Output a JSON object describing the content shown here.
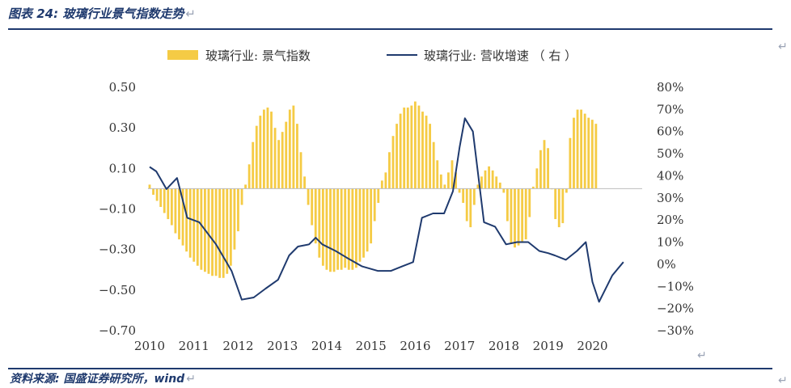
{
  "figure": {
    "title": "图表 24:  玻璃行业景气指数走势",
    "source": "资料来源:  国盛证券研究所，wind",
    "return_mark": "↵"
  },
  "colors": {
    "bar": "#f5cb45",
    "line": "#1f3a6e",
    "rule": "#1f3a6e",
    "text": "#333333"
  },
  "chart_data": {
    "type": "bar+line",
    "title": "",
    "x_labels": [
      "2010",
      "2011",
      "2012",
      "2013",
      "2014",
      "2015",
      "2016",
      "2017",
      "2018",
      "2019",
      "2020"
    ],
    "x_range": [
      2010,
      2021.05
    ],
    "left_axis": {
      "ylim": [
        -0.7,
        0.5
      ],
      "ticks": [
        "0.50",
        "0.30",
        "0.10",
        "−0.10",
        "−0.30",
        "−0.50",
        "−0.70"
      ]
    },
    "right_axis": {
      "ylim": [
        -30,
        80
      ],
      "ticks": [
        "80%",
        "70%",
        "60%",
        "50%",
        "40%",
        "30%",
        "20%",
        "10%",
        "0%",
        "−10%",
        "−20%",
        "−30%"
      ]
    },
    "series": [
      {
        "name": "玻璃行业：景气指数",
        "type": "bar",
        "axis": "left",
        "x_start": 2010.0,
        "x_step": 0.0833,
        "values": [
          0.02,
          -0.03,
          -0.06,
          -0.09,
          -0.12,
          -0.15,
          -0.18,
          -0.22,
          -0.25,
          -0.28,
          -0.31,
          -0.34,
          -0.36,
          -0.38,
          -0.4,
          -0.41,
          -0.42,
          -0.43,
          -0.43,
          -0.44,
          -0.44,
          -0.42,
          -0.38,
          -0.3,
          -0.21,
          -0.08,
          0.02,
          0.12,
          0.23,
          0.31,
          0.36,
          0.39,
          0.4,
          0.38,
          0.3,
          0.24,
          0.28,
          0.33,
          0.39,
          0.41,
          0.32,
          0.18,
          0.06,
          -0.08,
          -0.18,
          -0.27,
          -0.34,
          -0.38,
          -0.4,
          -0.41,
          -0.41,
          -0.4,
          -0.4,
          -0.39,
          -0.4,
          -0.4,
          -0.39,
          -0.36,
          -0.34,
          -0.31,
          -0.27,
          -0.16,
          -0.07,
          0.04,
          0.08,
          0.18,
          0.26,
          0.32,
          0.37,
          0.4,
          0.4,
          0.41,
          0.43,
          0.41,
          0.38,
          0.36,
          0.32,
          0.23,
          0.14,
          0.07,
          0.02,
          0.08,
          0.14,
          0.08,
          -0.02,
          -0.07,
          -0.16,
          -0.19,
          -0.08,
          0.02,
          0.06,
          0.09,
          0.11,
          0.09,
          0.06,
          0.03,
          -0.02,
          -0.16,
          -0.27,
          -0.29,
          -0.28,
          -0.26,
          -0.25,
          -0.14,
          0.01,
          0.1,
          0.19,
          0.24,
          0.2,
          0.0,
          -0.15,
          -0.19,
          -0.17,
          -0.02,
          0.25,
          0.35,
          0.39,
          0.39,
          0.37,
          0.35,
          0.34,
          0.32
        ]
      },
      {
        "name": "玻璃行业：营收增速（右）",
        "type": "line",
        "axis": "right",
        "points": [
          [
            2010.0,
            44
          ],
          [
            2010.15,
            42
          ],
          [
            2010.38,
            34
          ],
          [
            2010.62,
            39
          ],
          [
            2010.85,
            21
          ],
          [
            2011.12,
            19
          ],
          [
            2011.5,
            9
          ],
          [
            2011.85,
            -3
          ],
          [
            2012.08,
            -16
          ],
          [
            2012.35,
            -15
          ],
          [
            2012.62,
            -11
          ],
          [
            2012.9,
            -7
          ],
          [
            2013.15,
            4
          ],
          [
            2013.35,
            8
          ],
          [
            2013.6,
            9
          ],
          [
            2013.75,
            12
          ],
          [
            2013.9,
            9
          ],
          [
            2014.2,
            6
          ],
          [
            2014.45,
            3
          ],
          [
            2014.8,
            -1
          ],
          [
            2015.15,
            -3
          ],
          [
            2015.45,
            -3
          ],
          [
            2015.7,
            -1
          ],
          [
            2015.95,
            1
          ],
          [
            2016.15,
            21
          ],
          [
            2016.4,
            23
          ],
          [
            2016.65,
            23
          ],
          [
            2016.85,
            33
          ],
          [
            2017.0,
            53
          ],
          [
            2017.12,
            66
          ],
          [
            2017.3,
            60
          ],
          [
            2017.55,
            19
          ],
          [
            2017.8,
            17
          ],
          [
            2018.05,
            9
          ],
          [
            2018.3,
            10
          ],
          [
            2018.55,
            10
          ],
          [
            2018.8,
            6
          ],
          [
            2019.0,
            5
          ],
          [
            2019.15,
            4
          ],
          [
            2019.4,
            2
          ],
          [
            2019.65,
            6
          ],
          [
            2019.85,
            10
          ],
          [
            2020.0,
            -8
          ],
          [
            2020.15,
            -17
          ],
          [
            2020.45,
            -5
          ],
          [
            2020.7,
            1
          ]
        ]
      }
    ],
    "legend": {
      "position": "top-center",
      "entries": [
        "玻璃行业:  景气指数",
        "玻璃行业:  营收增速 （ 右 ）"
      ]
    }
  }
}
